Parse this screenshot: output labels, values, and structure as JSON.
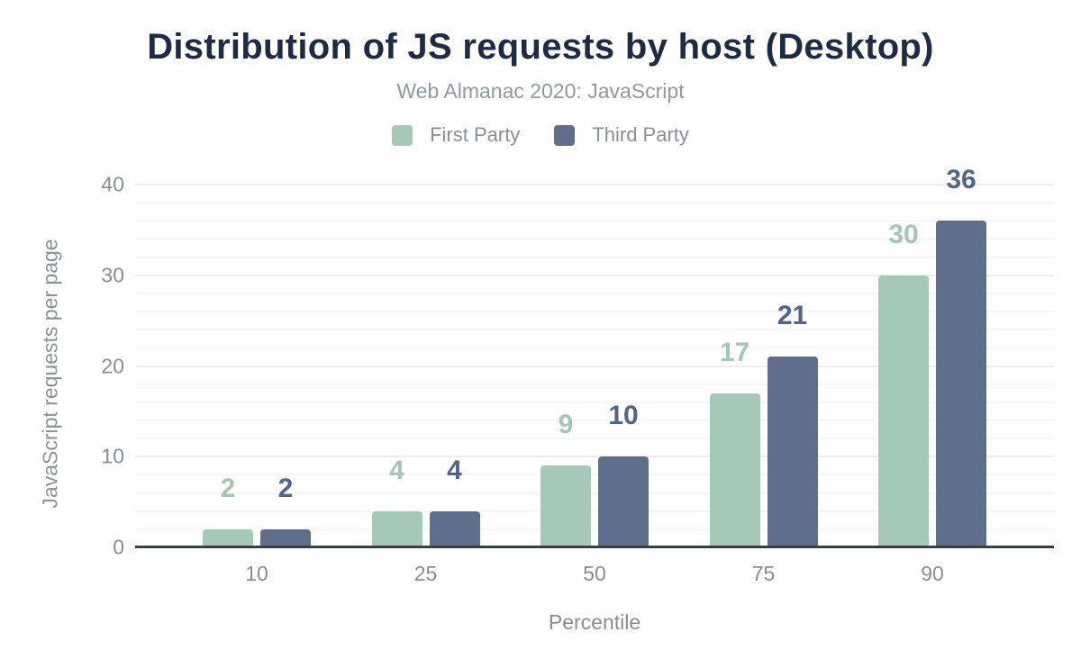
{
  "header": {
    "title": "Distribution of JS requests by host (Desktop)",
    "subtitle": "Web Almanac 2020: JavaScript"
  },
  "colors": {
    "title_text": "#1e2b47",
    "subtitle_text": "#9099a1",
    "axis_text": "#858d96",
    "axis_line": "#3b4046",
    "gridline_minor": "#f6f6f6",
    "gridline_major": "#ededed",
    "first_party": "#a4c9b6",
    "third_party": "#5f6e8a"
  },
  "chart_data": {
    "type": "bar",
    "title": "Distribution of JS requests by host (Desktop)",
    "subtitle": "Web Almanac 2020: JavaScript",
    "categories": [
      "10",
      "25",
      "50",
      "75",
      "90"
    ],
    "series": [
      {
        "name": "First Party",
        "color": "#a4c9b6",
        "label_color": "#a2c8b5",
        "values": [
          2,
          4,
          9,
          17,
          30
        ]
      },
      {
        "name": "Third Party",
        "color": "#5f6e8a",
        "label_color": "#51648a",
        "values": [
          2,
          4,
          10,
          21,
          36
        ]
      }
    ],
    "xlabel": "Percentile",
    "ylabel": "JavaScript requests per page",
    "ylim": [
      0,
      40
    ],
    "yticks": [
      0,
      10,
      20,
      30,
      40
    ],
    "grid": "horizontal; minor line every 2 units, major line every 10 units",
    "legend_position": "top",
    "data_labels": true
  }
}
